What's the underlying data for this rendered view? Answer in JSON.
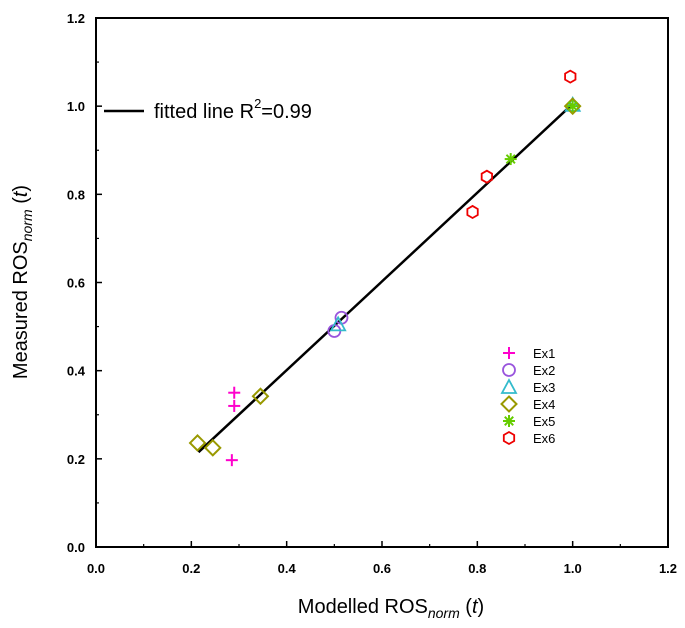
{
  "chart_data": {
    "type": "scatter",
    "xlabel": {
      "prefix": "Modelled ROS",
      "sub": "norm",
      "suffix_open": " (",
      "var": "t",
      "suffix_close": ")"
    },
    "ylabel": {
      "prefix": "Measured ROS",
      "sub": "norm",
      "suffix_open": " (",
      "var": "t",
      "suffix_close": ")"
    },
    "xlim": [
      0.0,
      1.2
    ],
    "ylim": [
      0.0,
      1.2
    ],
    "xticks": [
      "0.0",
      "0.2",
      "0.4",
      "0.6",
      "0.8",
      "1.0",
      "1.2"
    ],
    "yticks": [
      "0.0",
      "0.2",
      "0.4",
      "0.6",
      "0.8",
      "1.0",
      "1.2"
    ],
    "grid": false,
    "fit_line": {
      "label_text": "fitted line R",
      "label_sup": "2",
      "label_value": "=0.99",
      "x": [
        0.215,
        1.0
      ],
      "y": [
        0.215,
        1.005
      ],
      "color": "#000000"
    },
    "legend_position": "center-right",
    "series": [
      {
        "name": "Ex1",
        "marker": "plus",
        "color": "#ff00cc",
        "x": [
          0.29,
          0.29,
          0.285
        ],
        "y": [
          0.35,
          0.32,
          0.197
        ]
      },
      {
        "name": "Ex2",
        "marker": "circle",
        "color": "#9955dd",
        "x": [
          0.5,
          0.515
        ],
        "y": [
          0.49,
          0.52
        ]
      },
      {
        "name": "Ex3",
        "marker": "triangle",
        "color": "#33bbcc",
        "x": [
          0.508,
          1.0
        ],
        "y": [
          0.505,
          1.003
        ]
      },
      {
        "name": "Ex4",
        "marker": "diamond",
        "color": "#999900",
        "x": [
          0.213,
          0.245,
          0.345,
          1.0
        ],
        "y": [
          0.236,
          0.225,
          0.342,
          1.0
        ]
      },
      {
        "name": "Ex5",
        "marker": "asterisk",
        "color": "#66cc00",
        "x": [
          0.87,
          1.0
        ],
        "y": [
          0.88,
          1.0
        ]
      },
      {
        "name": "Ex6",
        "marker": "hexagon",
        "color": "#ee0000",
        "x": [
          0.995,
          0.82,
          0.79
        ],
        "y": [
          1.067,
          0.84,
          0.76
        ]
      }
    ]
  }
}
